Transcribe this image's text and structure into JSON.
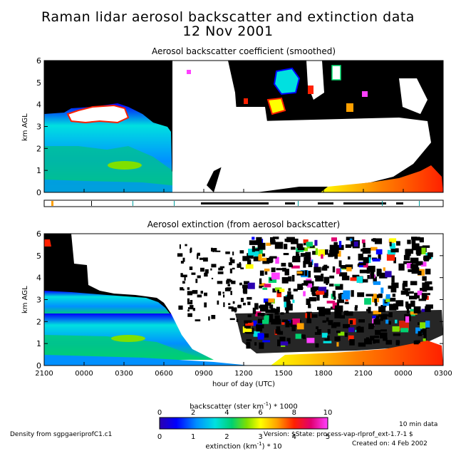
{
  "header": {
    "title_line1": "Raman lidar aerosol backscatter and extinction data",
    "title_line2": "12 Nov 2001"
  },
  "chart_data": [
    {
      "type": "heatmap",
      "title": "Aerosol backscatter coefficient (smoothed)",
      "ylabel": "km AGL",
      "ylim": [
        0,
        6
      ],
      "yticks": [
        "0",
        "1",
        "2",
        "3",
        "4",
        "5",
        "6"
      ],
      "colorbar": {
        "label": "backscatter (ster km⁻¹) * 1000",
        "label_text": "backscatter (ster km",
        "label_sup": "-1",
        "label_tail": ") * 1000",
        "range": [
          0,
          10
        ],
        "ticks": [
          "0",
          "2",
          "4",
          "6",
          "8",
          "10"
        ]
      }
    },
    {
      "type": "heatmap",
      "title": "Aerosol extinction (from aerosol backscatter)",
      "ylabel": "km AGL",
      "ylim": [
        0,
        6
      ],
      "yticks": [
        "0",
        "1",
        "2",
        "3",
        "4",
        "5",
        "6"
      ],
      "xlabel": "hour of day (UTC)",
      "xticks": [
        "2100",
        "0000",
        "0300",
        "0600",
        "0900",
        "1200",
        "1500",
        "1800",
        "2100",
        "0000",
        "0300"
      ],
      "colorbar": {
        "label_text": "extinction (km",
        "label_sup": "-1",
        "label_tail": ") * 10",
        "range": [
          0,
          5
        ],
        "ticks": [
          "0",
          "1",
          "2",
          "3",
          "4",
          "5"
        ]
      }
    }
  ],
  "colors": {
    "scale": [
      "#2b00b0",
      "#0000ff",
      "#0090ff",
      "#00e0e0",
      "#00d070",
      "#80e000",
      "#ffff00",
      "#ffa000",
      "#ff2000",
      "#e00070",
      "#ff40ff"
    ],
    "cloud_black": "#000000",
    "nodata_white": "#ffffff"
  },
  "footer": {
    "density_note": "Density from sgpgaeriprofC1.c1",
    "resolution": "10 min data",
    "version": "Version: $State: process-vap-rlprof_ext-1.7-1 $",
    "created": "Created on:  4 Feb 2002"
  }
}
